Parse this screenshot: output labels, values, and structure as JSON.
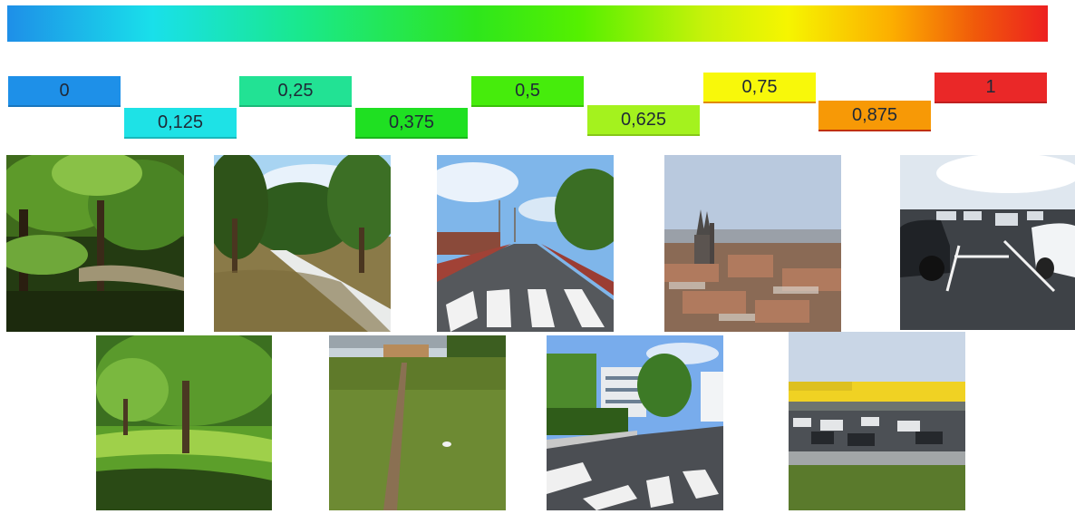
{
  "scale": {
    "stops": [
      {
        "label": "0",
        "color": "#1e90e8"
      },
      {
        "label": "0,125",
        "color": "#1ee2e6"
      },
      {
        "label": "0,25",
        "color": "#22e294"
      },
      {
        "label": "0,375",
        "color": "#1fe022"
      },
      {
        "label": "0,5",
        "color": "#46ec0c"
      },
      {
        "label": "0,625",
        "color": "#a4f21e"
      },
      {
        "label": "0,75",
        "color": "#f8f80a"
      },
      {
        "label": "0,875",
        "color": "#f79906"
      },
      {
        "label": "1",
        "color": "#ea2828"
      }
    ]
  },
  "photos": {
    "row1": [
      "forest-undergrowth",
      "park-path",
      "road-crosswalk",
      "city-rooftops",
      "parking-lot"
    ],
    "row2": [
      "park-lawn",
      "grass-trail",
      "street-crosswalk",
      "supermarket-parking"
    ]
  }
}
